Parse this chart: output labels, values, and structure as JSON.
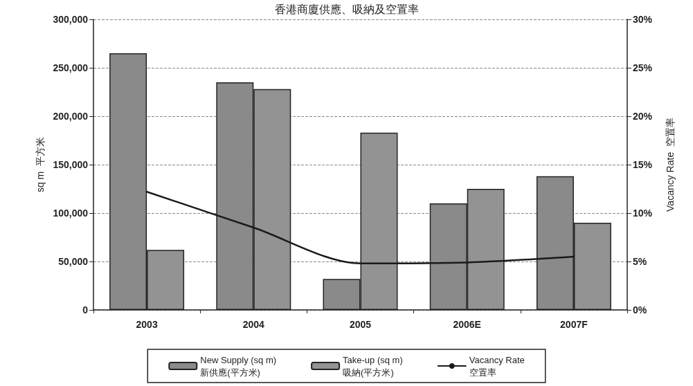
{
  "chart_data": {
    "type": "bar",
    "title": "香港商廈供應、吸納及空置率",
    "ylabel": "sq m  平方米",
    "y2label": "Vacancy Rate  空置率",
    "categories": [
      "2003",
      "2004",
      "2005",
      "2006E",
      "2007F"
    ],
    "series": [
      {
        "name": "New Supply (sq m)\n新供應(平方米)",
        "color": "#8a8a8a",
        "values": [
          265000,
          235000,
          32000,
          110000,
          138000
        ]
      },
      {
        "name": "Take-up (sq m)\n吸納(平方米)",
        "color": "#939393",
        "values": [
          62000,
          228000,
          183000,
          125000,
          90000
        ]
      },
      {
        "name": "Vacancy Rate\n空置率",
        "type": "line",
        "axis": "y2",
        "color": "#1a1a1a",
        "values": [
          12.2,
          8.5,
          4.8,
          4.9,
          5.5
        ]
      }
    ],
    "ylim": [
      0,
      300000
    ],
    "yticks": [
      {
        "value": 0,
        "label": "0"
      },
      {
        "value": 50000,
        "label": "50,000"
      },
      {
        "value": 100000,
        "label": "100,000"
      },
      {
        "value": 150000,
        "label": "150,000"
      },
      {
        "value": 200000,
        "label": "200,000"
      },
      {
        "value": 250000,
        "label": "250,000"
      },
      {
        "value": 300000,
        "label": "300,000"
      }
    ],
    "y2lim": [
      0,
      30
    ],
    "y2ticks": [
      {
        "value": 0,
        "label": "0%"
      },
      {
        "value": 5,
        "label": "5%"
      },
      {
        "value": 10,
        "label": "10%"
      },
      {
        "value": 15,
        "label": "15%"
      },
      {
        "value": 20,
        "label": "20%"
      },
      {
        "value": 25,
        "label": "25%"
      },
      {
        "value": 30,
        "label": "30%"
      }
    ],
    "grid": "y",
    "legend": "bottom",
    "marker": "none",
    "line_style": "solid"
  }
}
